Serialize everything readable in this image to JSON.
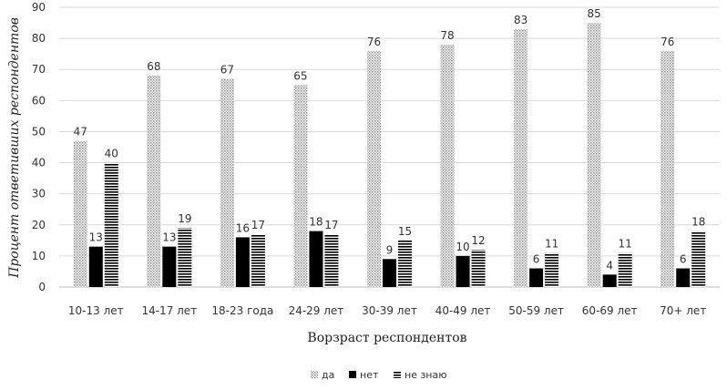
{
  "chart_data": {
    "type": "bar",
    "title": "",
    "xlabel": "Ворзраст респондентов",
    "ylabel": "Процент ответивших респондентов",
    "ylim": [
      0,
      90
    ],
    "yticks": [
      0,
      10,
      20,
      30,
      40,
      50,
      60,
      70,
      80,
      90
    ],
    "grid": true,
    "legend_position": "bottom",
    "categories": [
      "10-13 лет",
      "14-17 лет",
      "18-23 года",
      "24-29 лет",
      "30-39 лет",
      "40-49 лет",
      "50-59 лет",
      "60-69 лет",
      "70+ лет"
    ],
    "series": [
      {
        "name": "да",
        "values": [
          47,
          68,
          67,
          65,
          76,
          78,
          83,
          85,
          76
        ],
        "pattern": "dotted-gray",
        "show_labels": true
      },
      {
        "name": "нет",
        "values": [
          13,
          13,
          16,
          18,
          9,
          10,
          6,
          4,
          6
        ],
        "pattern": "solid-black",
        "show_labels": true
      },
      {
        "name": "не знаю",
        "values": [
          40,
          19,
          17,
          17,
          15,
          12,
          11,
          11,
          18
        ],
        "pattern": "horizontal-stripes",
        "show_labels": true
      }
    ],
    "colors": {
      "bar_dark": "#000000",
      "dot": "#999999",
      "grid": "#d9d9d9",
      "text": "#333333"
    }
  }
}
